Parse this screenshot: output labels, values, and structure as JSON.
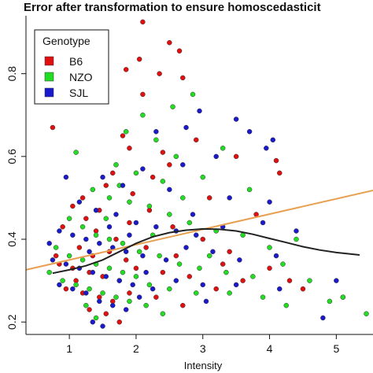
{
  "chart_data": {
    "type": "scatter",
    "title": "Error after transformation to ensure homoscedasticit",
    "xlabel": "Intensity",
    "ylabel": "",
    "xlim": [
      0.35,
      5.55
    ],
    "ylim": [
      0.17,
      0.94
    ],
    "x_ticks": [
      1,
      2,
      3,
      4,
      5
    ],
    "y_ticks": [
      0.2,
      0.4,
      0.6,
      0.8
    ],
    "grid": false,
    "legend": {
      "title": "Genotype",
      "placement": "top-left"
    },
    "colors": {
      "B6": "#e01010",
      "NZO": "#22dd22",
      "SJL": "#1a1acc",
      "linear_fit": "#e8a050",
      "smooth_fit": "#222222"
    },
    "series": [
      {
        "name": "B6",
        "points": [
          [
            2.1,
            0.925
          ],
          [
            2.5,
            0.875
          ],
          [
            2.65,
            0.855
          ],
          [
            2.05,
            0.835
          ],
          [
            1.85,
            0.81
          ],
          [
            2.35,
            0.8
          ],
          [
            2.7,
            0.79
          ],
          [
            2.1,
            0.75
          ],
          [
            0.75,
            0.67
          ],
          [
            1.8,
            0.65
          ],
          [
            2.9,
            0.64
          ],
          [
            1.9,
            0.62
          ],
          [
            2.4,
            0.61
          ],
          [
            3.5,
            0.6
          ],
          [
            4.1,
            0.59
          ],
          [
            1.65,
            0.56
          ],
          [
            2.5,
            0.58
          ],
          [
            3.1,
            0.5
          ],
          [
            3.8,
            0.46
          ],
          [
            4.15,
            0.56
          ],
          [
            1.55,
            0.53
          ],
          [
            1.95,
            0.51
          ],
          [
            2.2,
            0.47
          ],
          [
            1.05,
            0.48
          ],
          [
            1.25,
            0.45
          ],
          [
            0.9,
            0.43
          ],
          [
            1.4,
            0.42
          ],
          [
            1.7,
            0.4
          ],
          [
            2.15,
            0.38
          ],
          [
            2.6,
            0.36
          ],
          [
            3.0,
            0.4
          ],
          [
            3.4,
            0.37
          ],
          [
            1.15,
            0.38
          ],
          [
            1.35,
            0.36
          ],
          [
            1.6,
            0.37
          ],
          [
            1.85,
            0.35
          ],
          [
            0.85,
            0.34
          ],
          [
            1.05,
            0.33
          ],
          [
            1.3,
            0.32
          ],
          [
            1.5,
            0.31
          ],
          [
            1.75,
            0.3
          ],
          [
            2.0,
            0.33
          ],
          [
            2.4,
            0.32
          ],
          [
            2.8,
            0.31
          ],
          [
            3.2,
            0.28
          ],
          [
            3.6,
            0.3
          ],
          [
            4.0,
            0.33
          ],
          [
            4.3,
            0.3
          ],
          [
            0.95,
            0.28
          ],
          [
            1.2,
            0.27
          ],
          [
            1.45,
            0.26
          ],
          [
            1.65,
            0.25
          ],
          [
            1.9,
            0.27
          ],
          [
            2.3,
            0.26
          ],
          [
            2.7,
            0.24
          ],
          [
            1.3,
            0.23
          ],
          [
            1.55,
            0.22
          ],
          [
            1.75,
            0.2
          ],
          [
            5.1,
            0.26
          ],
          [
            1.1,
            0.3
          ],
          [
            2.55,
            0.43
          ],
          [
            1.45,
            0.47
          ],
          [
            0.8,
            0.36
          ],
          [
            1.9,
            0.44
          ],
          [
            3.3,
            0.34
          ],
          [
            4.5,
            0.28
          ],
          [
            1.2,
            0.5
          ],
          [
            2.25,
            0.55
          ]
        ]
      },
      {
        "name": "NZO",
        "points": [
          [
            2.85,
            0.75
          ],
          [
            2.55,
            0.72
          ],
          [
            2.1,
            0.7
          ],
          [
            1.85,
            0.66
          ],
          [
            2.3,
            0.64
          ],
          [
            1.1,
            0.61
          ],
          [
            3.3,
            0.62
          ],
          [
            2.6,
            0.6
          ],
          [
            1.7,
            0.58
          ],
          [
            2.0,
            0.56
          ],
          [
            2.4,
            0.54
          ],
          [
            3.0,
            0.55
          ],
          [
            3.7,
            0.52
          ],
          [
            1.35,
            0.52
          ],
          [
            1.6,
            0.5
          ],
          [
            1.9,
            0.49
          ],
          [
            2.2,
            0.48
          ],
          [
            2.5,
            0.46
          ],
          [
            2.8,
            0.44
          ],
          [
            3.2,
            0.42
          ],
          [
            3.6,
            0.41
          ],
          [
            4.0,
            0.38
          ],
          [
            4.4,
            0.4
          ],
          [
            1.0,
            0.45
          ],
          [
            1.2,
            0.43
          ],
          [
            1.4,
            0.41
          ],
          [
            1.6,
            0.4
          ],
          [
            1.8,
            0.39
          ],
          [
            2.05,
            0.37
          ],
          [
            2.35,
            0.36
          ],
          [
            2.65,
            0.34
          ],
          [
            2.95,
            0.33
          ],
          [
            3.35,
            0.32
          ],
          [
            3.75,
            0.31
          ],
          [
            4.2,
            0.34
          ],
          [
            0.8,
            0.38
          ],
          [
            1.0,
            0.36
          ],
          [
            1.2,
            0.35
          ],
          [
            1.4,
            0.34
          ],
          [
            1.6,
            0.33
          ],
          [
            1.8,
            0.32
          ],
          [
            2.0,
            0.31
          ],
          [
            2.2,
            0.29
          ],
          [
            2.5,
            0.28
          ],
          [
            2.9,
            0.27
          ],
          [
            3.4,
            0.27
          ],
          [
            3.9,
            0.26
          ],
          [
            4.6,
            0.3
          ],
          [
            4.9,
            0.25
          ],
          [
            0.9,
            0.3
          ],
          [
            1.1,
            0.29
          ],
          [
            1.3,
            0.28
          ],
          [
            1.5,
            0.27
          ],
          [
            1.7,
            0.26
          ],
          [
            1.9,
            0.25
          ],
          [
            2.15,
            0.24
          ],
          [
            2.4,
            0.22
          ],
          [
            1.4,
            0.21
          ],
          [
            5.1,
            0.26
          ],
          [
            5.45,
            0.22
          ],
          [
            2.7,
            0.5
          ],
          [
            1.55,
            0.45
          ],
          [
            3.1,
            0.36
          ],
          [
            0.7,
            0.32
          ],
          [
            2.25,
            0.41
          ],
          [
            1.75,
            0.53
          ],
          [
            4.25,
            0.24
          ],
          [
            1.25,
            0.24
          ]
        ]
      },
      {
        "name": "SJL",
        "points": [
          [
            2.95,
            0.71
          ],
          [
            3.5,
            0.69
          ],
          [
            2.75,
            0.67
          ],
          [
            2.3,
            0.66
          ],
          [
            4.05,
            0.64
          ],
          [
            3.95,
            0.62
          ],
          [
            3.2,
            0.6
          ],
          [
            2.7,
            0.58
          ],
          [
            0.95,
            0.55
          ],
          [
            2.1,
            0.57
          ],
          [
            1.5,
            0.55
          ],
          [
            1.8,
            0.53
          ],
          [
            2.5,
            0.52
          ],
          [
            3.4,
            0.5
          ],
          [
            4.0,
            0.49
          ],
          [
            1.15,
            0.49
          ],
          [
            1.4,
            0.47
          ],
          [
            1.7,
            0.46
          ],
          [
            2.0,
            0.44
          ],
          [
            2.3,
            0.43
          ],
          [
            2.6,
            0.42
          ],
          [
            2.9,
            0.41
          ],
          [
            3.3,
            0.43
          ],
          [
            3.9,
            0.44
          ],
          [
            4.4,
            0.42
          ],
          [
            0.85,
            0.42
          ],
          [
            1.05,
            0.41
          ],
          [
            1.25,
            0.4
          ],
          [
            1.45,
            0.39
          ],
          [
            1.65,
            0.38
          ],
          [
            1.85,
            0.37
          ],
          [
            2.1,
            0.36
          ],
          [
            2.45,
            0.35
          ],
          [
            2.75,
            0.38
          ],
          [
            3.15,
            0.37
          ],
          [
            3.55,
            0.35
          ],
          [
            4.1,
            0.36
          ],
          [
            0.75,
            0.35
          ],
          [
            0.95,
            0.34
          ],
          [
            1.15,
            0.33
          ],
          [
            1.35,
            0.32
          ],
          [
            1.55,
            0.31
          ],
          [
            1.75,
            0.3
          ],
          [
            1.95,
            0.29
          ],
          [
            2.25,
            0.28
          ],
          [
            2.6,
            0.3
          ],
          [
            3.0,
            0.29
          ],
          [
            3.5,
            0.29
          ],
          [
            4.15,
            0.28
          ],
          [
            4.8,
            0.21
          ],
          [
            0.85,
            0.29
          ],
          [
            1.05,
            0.28
          ],
          [
            1.25,
            0.27
          ],
          [
            1.45,
            0.25
          ],
          [
            1.65,
            0.24
          ],
          [
            1.85,
            0.23
          ],
          [
            1.35,
            0.2
          ],
          [
            1.5,
            0.19
          ],
          [
            2.05,
            0.26
          ],
          [
            5.0,
            0.3
          ],
          [
            3.7,
            0.66
          ],
          [
            1.6,
            0.43
          ],
          [
            2.85,
            0.46
          ],
          [
            1.3,
            0.37
          ],
          [
            0.7,
            0.39
          ],
          [
            2.15,
            0.32
          ],
          [
            3.05,
            0.25
          ],
          [
            1.9,
            0.41
          ]
        ]
      }
    ],
    "fit_lines": [
      {
        "name": "linear",
        "color": "#e8a050",
        "points": [
          [
            0.35,
            0.326
          ],
          [
            5.55,
            0.518
          ]
        ]
      },
      {
        "name": "smooth",
        "color": "#222222",
        "points": [
          [
            0.75,
            0.318
          ],
          [
            1.0,
            0.326
          ],
          [
            1.25,
            0.336
          ],
          [
            1.5,
            0.35
          ],
          [
            1.75,
            0.37
          ],
          [
            2.0,
            0.39
          ],
          [
            2.25,
            0.406
          ],
          [
            2.5,
            0.416
          ],
          [
            2.75,
            0.422
          ],
          [
            3.0,
            0.425
          ],
          [
            3.25,
            0.424
          ],
          [
            3.5,
            0.42
          ],
          [
            3.75,
            0.412
          ],
          [
            4.0,
            0.402
          ],
          [
            4.25,
            0.392
          ],
          [
            4.5,
            0.382
          ],
          [
            4.75,
            0.374
          ],
          [
            5.0,
            0.368
          ],
          [
            5.35,
            0.362
          ]
        ]
      }
    ]
  }
}
